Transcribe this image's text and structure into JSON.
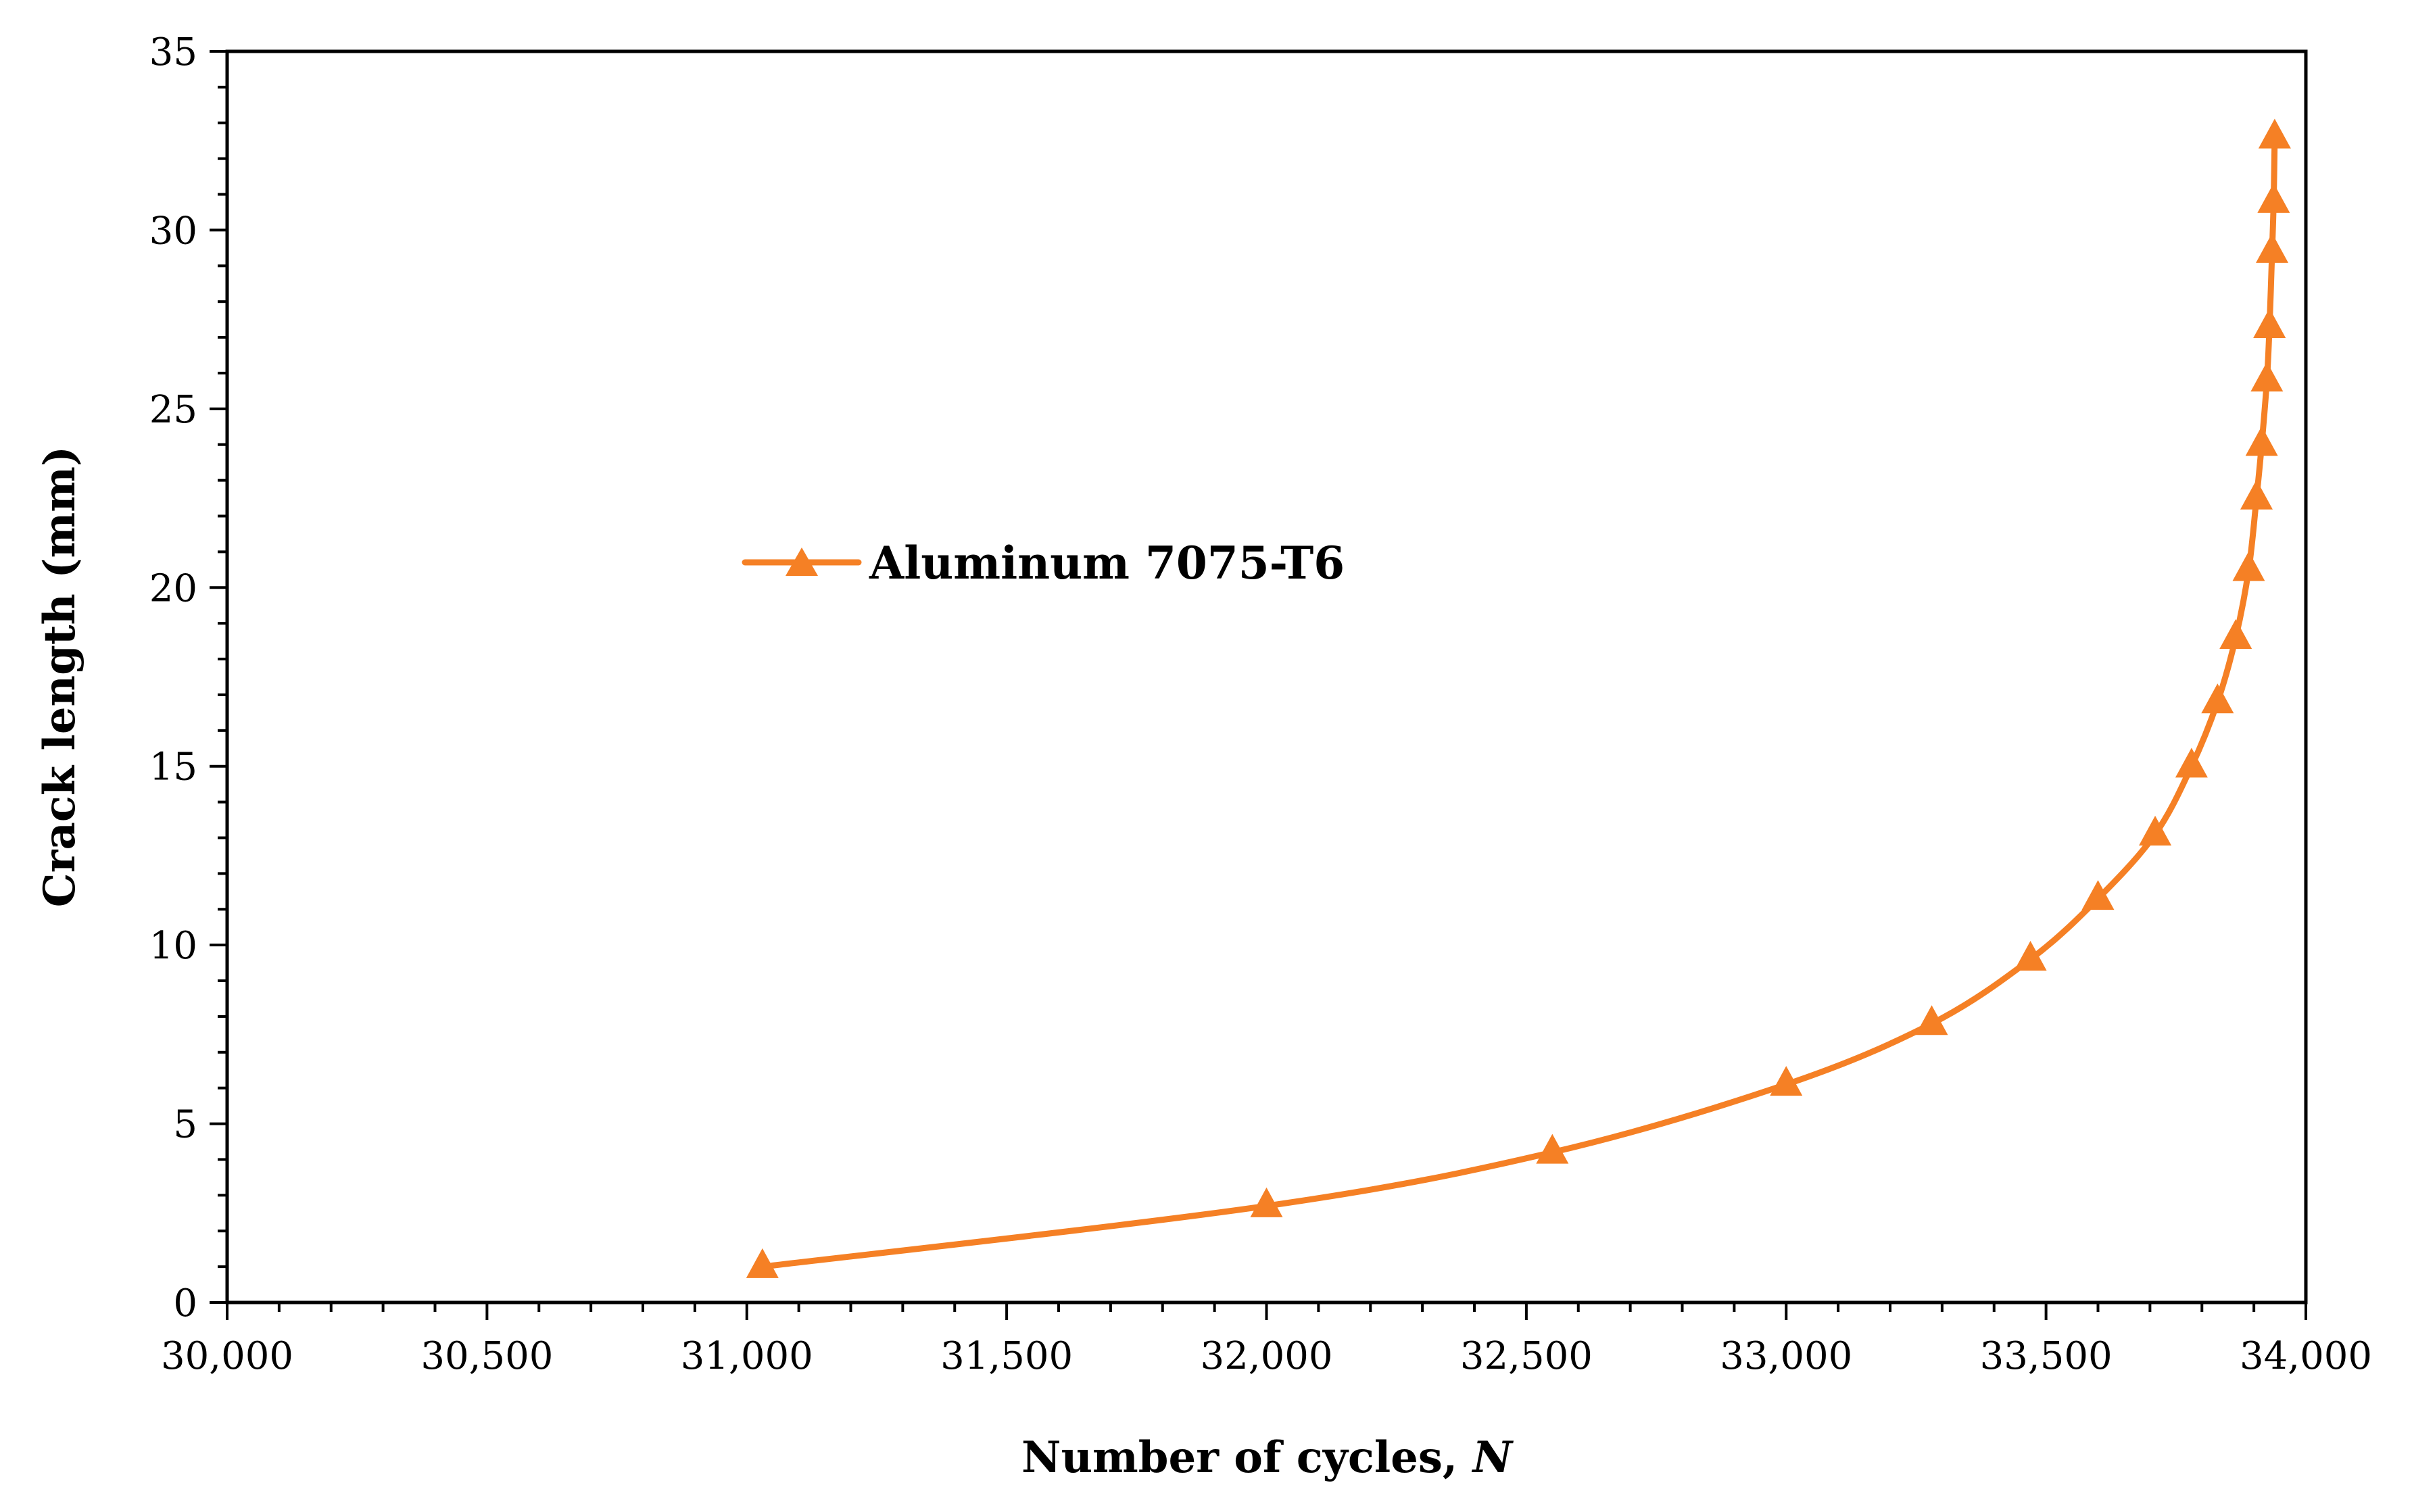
{
  "chart_data": {
    "type": "line",
    "title": "",
    "xlabel": "Number of cycles, ",
    "xlabel_italic": "N",
    "ylabel": "Crack length (mm)",
    "xlim": [
      30000,
      34000
    ],
    "ylim": [
      0,
      35
    ],
    "x_ticks": [
      30000,
      30500,
      31000,
      31500,
      32000,
      32500,
      33000,
      33500,
      34000
    ],
    "x_tick_labels": [
      "30,000",
      "30,500",
      "31,000",
      "31,500",
      "32,000",
      "32,500",
      "33,000",
      "33,500",
      "34,000"
    ],
    "y_ticks": [
      0,
      5,
      10,
      15,
      20,
      25,
      30,
      35
    ],
    "y_tick_labels": [
      "0",
      "5",
      "10",
      "15",
      "20",
      "25",
      "30",
      "35"
    ],
    "grid": false,
    "legend_position": "center-left",
    "series": [
      {
        "name": "Aluminum 7075-T6",
        "color": "#f58025",
        "marker": "triangle",
        "x": [
          31030,
          32000,
          32550,
          33000,
          33280,
          33470,
          33600,
          33710,
          33780,
          33830,
          33865,
          33890,
          33905,
          33915,
          33925,
          33930,
          33935,
          33938,
          33940
        ],
        "y": [
          1.0,
          2.7,
          4.2,
          6.1,
          7.8,
          9.6,
          11.3,
          13.1,
          15.0,
          16.8,
          18.6,
          20.5,
          22.5,
          24.0,
          25.8,
          27.3,
          29.4,
          30.8,
          32.6
        ]
      }
    ]
  }
}
